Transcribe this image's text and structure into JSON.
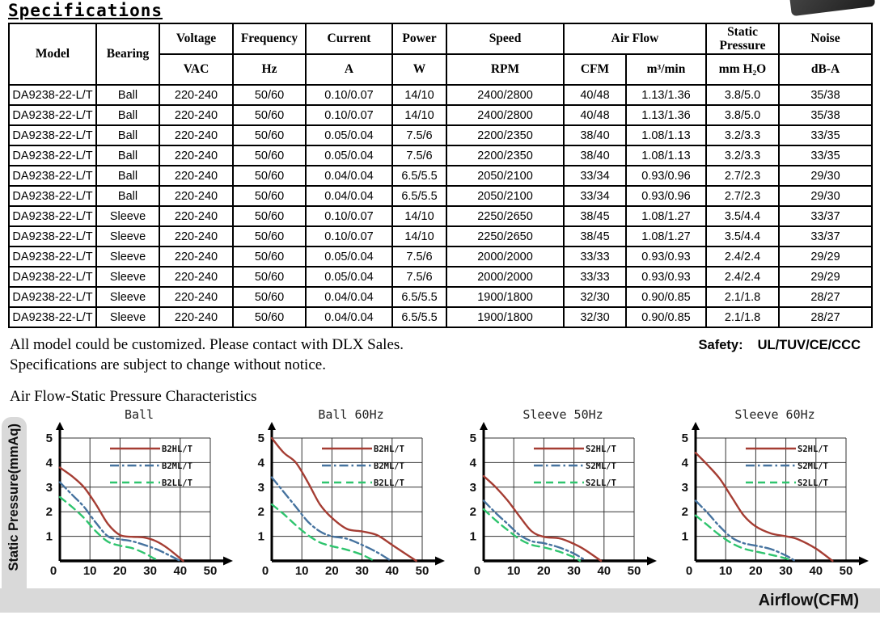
{
  "page": {
    "title": "Specifications",
    "note1": "All model could be customized. Please contact with DLX Sales.",
    "note2": "Specifications are subject to change without notice.",
    "safety_label": "Safety:",
    "safety_value": "UL/TUV/CE/CCC",
    "section_title": "Air Flow-Static Pressure Characteristics"
  },
  "table": {
    "header_row1": [
      "Model",
      "Bearing",
      "Voltage",
      "Frequency",
      "Current",
      "Power",
      "Speed",
      "Air Flow",
      "Static Pressure",
      "Noise"
    ],
    "header_row2": [
      "VAC",
      "Hz",
      "A",
      "W",
      "RPM",
      "CFM",
      "m³/min",
      "mm H₂O",
      "dB-A"
    ],
    "rows": [
      [
        "DA9238-22-L/T",
        "Ball",
        "220-240",
        "50/60",
        "0.10/0.07",
        "14/10",
        "2400/2800",
        "40/48",
        "1.13/1.36",
        "3.8/5.0",
        "35/38"
      ],
      [
        "DA9238-22-L/T",
        "Ball",
        "220-240",
        "50/60",
        "0.10/0.07",
        "14/10",
        "2400/2800",
        "40/48",
        "1.13/1.36",
        "3.8/5.0",
        "35/38"
      ],
      [
        "DA9238-22-L/T",
        "Ball",
        "220-240",
        "50/60",
        "0.05/0.04",
        "7.5/6",
        "2200/2350",
        "38/40",
        "1.08/1.13",
        "3.2/3.3",
        "33/35"
      ],
      [
        "DA9238-22-L/T",
        "Ball",
        "220-240",
        "50/60",
        "0.05/0.04",
        "7.5/6",
        "2200/2350",
        "38/40",
        "1.08/1.13",
        "3.2/3.3",
        "33/35"
      ],
      [
        "DA9238-22-L/T",
        "Ball",
        "220-240",
        "50/60",
        "0.04/0.04",
        "6.5/5.5",
        "2050/2100",
        "33/34",
        "0.93/0.96",
        "2.7/2.3",
        "29/30"
      ],
      [
        "DA9238-22-L/T",
        "Ball",
        "220-240",
        "50/60",
        "0.04/0.04",
        "6.5/5.5",
        "2050/2100",
        "33/34",
        "0.93/0.96",
        "2.7/2.3",
        "29/30"
      ],
      [
        "DA9238-22-L/T",
        "Sleeve",
        "220-240",
        "50/60",
        "0.10/0.07",
        "14/10",
        "2250/2650",
        "38/45",
        "1.08/1.27",
        "3.5/4.4",
        "33/37"
      ],
      [
        "DA9238-22-L/T",
        "Sleeve",
        "220-240",
        "50/60",
        "0.10/0.07",
        "14/10",
        "2250/2650",
        "38/45",
        "1.08/1.27",
        "3.5/4.4",
        "33/37"
      ],
      [
        "DA9238-22-L/T",
        "Sleeve",
        "220-240",
        "50/60",
        "0.05/0.04",
        "7.5/6",
        "2000/2000",
        "33/33",
        "0.93/0.93",
        "2.4/2.4",
        "29/29"
      ],
      [
        "DA9238-22-L/T",
        "Sleeve",
        "220-240",
        "50/60",
        "0.05/0.04",
        "7.5/6",
        "2000/2000",
        "33/33",
        "0.93/0.93",
        "2.4/2.4",
        "29/29"
      ],
      [
        "DA9238-22-L/T",
        "Sleeve",
        "220-240",
        "50/60",
        "0.04/0.04",
        "6.5/5.5",
        "1900/1800",
        "32/30",
        "0.90/0.85",
        "2.1/1.8",
        "28/27"
      ],
      [
        "DA9238-22-L/T",
        "Sleeve",
        "220-240",
        "50/60",
        "0.04/0.04",
        "6.5/5.5",
        "1900/1800",
        "32/30",
        "0.90/0.85",
        "2.1/1.8",
        "28/27"
      ]
    ]
  },
  "chart_axes": {
    "xlabel": "Airflow(CFM)",
    "ylabel": "Static Pressure(mmAq)",
    "x_ticks": [
      0,
      10,
      20,
      30,
      40,
      50
    ],
    "y_ticks": [
      0,
      1,
      2,
      3,
      4,
      5
    ],
    "xlim": [
      0,
      50
    ],
    "ylim": [
      0,
      5
    ],
    "grid": true,
    "legend_position": "upper-right"
  },
  "chart_colors": {
    "high": "#a53d33",
    "mid": "#46739f",
    "low": "#2fc46e"
  },
  "chart_data": [
    {
      "type": "line",
      "title": "Ball",
      "series": [
        {
          "name": "B2HL/T",
          "color": "#a53d33",
          "style": "solid",
          "points": [
            [
              0,
              3.8
            ],
            [
              4,
              3.45
            ],
            [
              8,
              3.0
            ],
            [
              12,
              2.3
            ],
            [
              16,
              1.5
            ],
            [
              20,
              1.05
            ],
            [
              24,
              0.98
            ],
            [
              28,
              0.95
            ],
            [
              32,
              0.8
            ],
            [
              36,
              0.5
            ],
            [
              41,
              0
            ]
          ]
        },
        {
          "name": "B2ML/T",
          "color": "#46739f",
          "style": "dashdot",
          "points": [
            [
              0,
              3.2
            ],
            [
              4,
              2.7
            ],
            [
              8,
              2.2
            ],
            [
              12,
              1.55
            ],
            [
              16,
              1.0
            ],
            [
              20,
              0.88
            ],
            [
              24,
              0.8
            ],
            [
              28,
              0.65
            ],
            [
              32,
              0.48
            ],
            [
              36,
              0.25
            ],
            [
              40,
              0
            ]
          ]
        },
        {
          "name": "B2LL/T",
          "color": "#2fc46e",
          "style": "dashed",
          "points": [
            [
              0,
              2.6
            ],
            [
              4,
              2.2
            ],
            [
              8,
              1.75
            ],
            [
              12,
              1.2
            ],
            [
              16,
              0.78
            ],
            [
              20,
              0.62
            ],
            [
              24,
              0.52
            ],
            [
              28,
              0.32
            ],
            [
              31,
              0.12
            ],
            [
              33,
              0
            ]
          ]
        }
      ]
    },
    {
      "type": "line",
      "title": "Ball 60Hz",
      "series": [
        {
          "name": "B2HL/T",
          "color": "#a53d33",
          "style": "solid",
          "points": [
            [
              0,
              5.0
            ],
            [
              4,
              4.4
            ],
            [
              8,
              4.0
            ],
            [
              12,
              3.2
            ],
            [
              16,
              2.3
            ],
            [
              20,
              1.75
            ],
            [
              25,
              1.3
            ],
            [
              30,
              1.2
            ],
            [
              35,
              1.05
            ],
            [
              40,
              0.65
            ],
            [
              48,
              0
            ]
          ]
        },
        {
          "name": "B2ML/T",
          "color": "#46739f",
          "style": "dashdot",
          "points": [
            [
              0,
              3.4
            ],
            [
              4,
              2.8
            ],
            [
              8,
              2.2
            ],
            [
              12,
              1.6
            ],
            [
              16,
              1.2
            ],
            [
              20,
              1.0
            ],
            [
              25,
              0.9
            ],
            [
              30,
              0.65
            ],
            [
              35,
              0.35
            ],
            [
              39,
              0.05
            ]
          ]
        },
        {
          "name": "B2LL/T",
          "color": "#2fc46e",
          "style": "dashed",
          "points": [
            [
              0,
              2.3
            ],
            [
              4,
              1.9
            ],
            [
              8,
              1.45
            ],
            [
              12,
              1.05
            ],
            [
              16,
              0.75
            ],
            [
              20,
              0.6
            ],
            [
              25,
              0.45
            ],
            [
              30,
              0.25
            ],
            [
              34,
              0
            ]
          ]
        }
      ]
    },
    {
      "type": "line",
      "title": "Sleeve 50Hz",
      "series": [
        {
          "name": "S2HL/T",
          "color": "#a53d33",
          "style": "solid",
          "points": [
            [
              0,
              3.45
            ],
            [
              4,
              3.0
            ],
            [
              8,
              2.45
            ],
            [
              12,
              1.8
            ],
            [
              16,
              1.2
            ],
            [
              20,
              0.98
            ],
            [
              25,
              0.92
            ],
            [
              28,
              0.8
            ],
            [
              33,
              0.5
            ],
            [
              39,
              0
            ]
          ]
        },
        {
          "name": "S2ML/T",
          "color": "#46739f",
          "style": "dashdot",
          "points": [
            [
              0,
              2.45
            ],
            [
              4,
              1.95
            ],
            [
              8,
              1.5
            ],
            [
              12,
              1.05
            ],
            [
              16,
              0.8
            ],
            [
              20,
              0.72
            ],
            [
              25,
              0.55
            ],
            [
              30,
              0.3
            ],
            [
              33,
              0.08
            ]
          ]
        },
        {
          "name": "S2LL/T",
          "color": "#2fc46e",
          "style": "dashed",
          "points": [
            [
              0,
              2.1
            ],
            [
              4,
              1.65
            ],
            [
              8,
              1.25
            ],
            [
              12,
              0.88
            ],
            [
              16,
              0.65
            ],
            [
              20,
              0.55
            ],
            [
              25,
              0.38
            ],
            [
              30,
              0.15
            ],
            [
              32,
              0
            ]
          ]
        }
      ]
    },
    {
      "type": "line",
      "title": "Sleeve 60Hz",
      "series": [
        {
          "name": "S2HL/T",
          "color": "#a53d33",
          "style": "solid",
          "points": [
            [
              0,
              4.4
            ],
            [
              4,
              3.9
            ],
            [
              8,
              3.35
            ],
            [
              12,
              2.6
            ],
            [
              16,
              1.85
            ],
            [
              20,
              1.4
            ],
            [
              25,
              1.12
            ],
            [
              30,
              1.0
            ],
            [
              34,
              0.88
            ],
            [
              40,
              0.5
            ],
            [
              45.5,
              0
            ]
          ]
        },
        {
          "name": "S2ML/T",
          "color": "#46739f",
          "style": "dashdot",
          "points": [
            [
              0,
              2.45
            ],
            [
              4,
              1.95
            ],
            [
              8,
              1.4
            ],
            [
              12,
              0.95
            ],
            [
              16,
              0.72
            ],
            [
              20,
              0.62
            ],
            [
              25,
              0.48
            ],
            [
              30,
              0.22
            ],
            [
              33,
              0
            ]
          ]
        },
        {
          "name": "S2LL/T",
          "color": "#2fc46e",
          "style": "dashed",
          "points": [
            [
              0,
              1.85
            ],
            [
              4,
              1.45
            ],
            [
              8,
              1.05
            ],
            [
              12,
              0.72
            ],
            [
              16,
              0.5
            ],
            [
              20,
              0.38
            ],
            [
              25,
              0.25
            ],
            [
              30,
              0.1
            ],
            [
              32,
              0
            ]
          ]
        }
      ]
    }
  ]
}
